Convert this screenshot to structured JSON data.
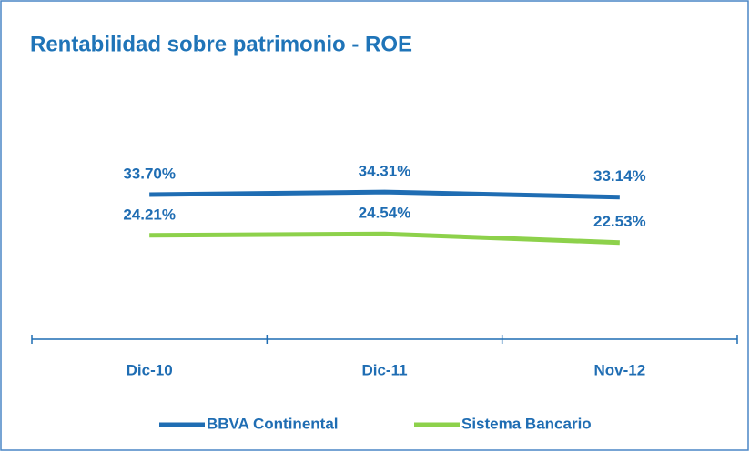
{
  "chart_data": {
    "type": "line",
    "title": "Rentabilidad sobre patrimonio - ROE",
    "categories": [
      "Dic-10",
      "Dic-11",
      "Nov-12"
    ],
    "series": [
      {
        "name": "BBVA Continental",
        "color": "#1f6db3",
        "values": [
          33.7,
          34.31,
          33.14
        ],
        "value_labels": [
          "33.70%",
          "34.31%",
          "33.14%"
        ]
      },
      {
        "name": "Sistema Bancario",
        "color": "#8dd14b",
        "values": [
          24.21,
          24.54,
          22.53
        ],
        "value_labels": [
          "24.21%",
          "24.54%",
          "22.53%"
        ]
      }
    ],
    "ylim": [
      0,
      60
    ],
    "legend": "bottom"
  }
}
